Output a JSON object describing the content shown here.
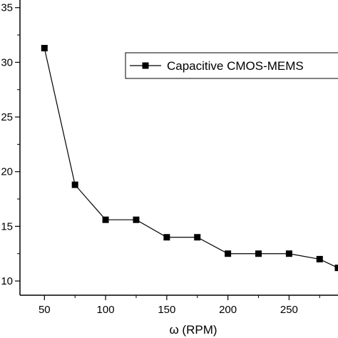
{
  "chart_data": {
    "type": "line",
    "title": "",
    "xlabel": "ω (RPM)",
    "ylabel": "",
    "xlim": [
      30,
      290
    ],
    "ylim": [
      8.7,
      35.7
    ],
    "x_ticks": [
      50,
      100,
      150,
      200,
      250
    ],
    "x_tick_labels": [
      "50",
      "100",
      "150",
      "200",
      "250"
    ],
    "y_ticks": [
      10,
      15,
      20,
      25,
      30,
      35
    ],
    "y_tick_labels": [
      "10",
      "15",
      "20",
      "25",
      "30",
      "35"
    ],
    "grid": false,
    "legend_position": "top-right",
    "series": [
      {
        "name": "Capacitive CMOS-MEMS",
        "marker": "square",
        "color": "#000000",
        "x": [
          50,
          75,
          100,
          125,
          150,
          175,
          200,
          225,
          250,
          275,
          290
        ],
        "y": [
          31.3,
          18.8,
          15.6,
          15.6,
          14.0,
          14.0,
          12.5,
          12.5,
          12.5,
          12.0,
          11.2
        ]
      }
    ]
  }
}
